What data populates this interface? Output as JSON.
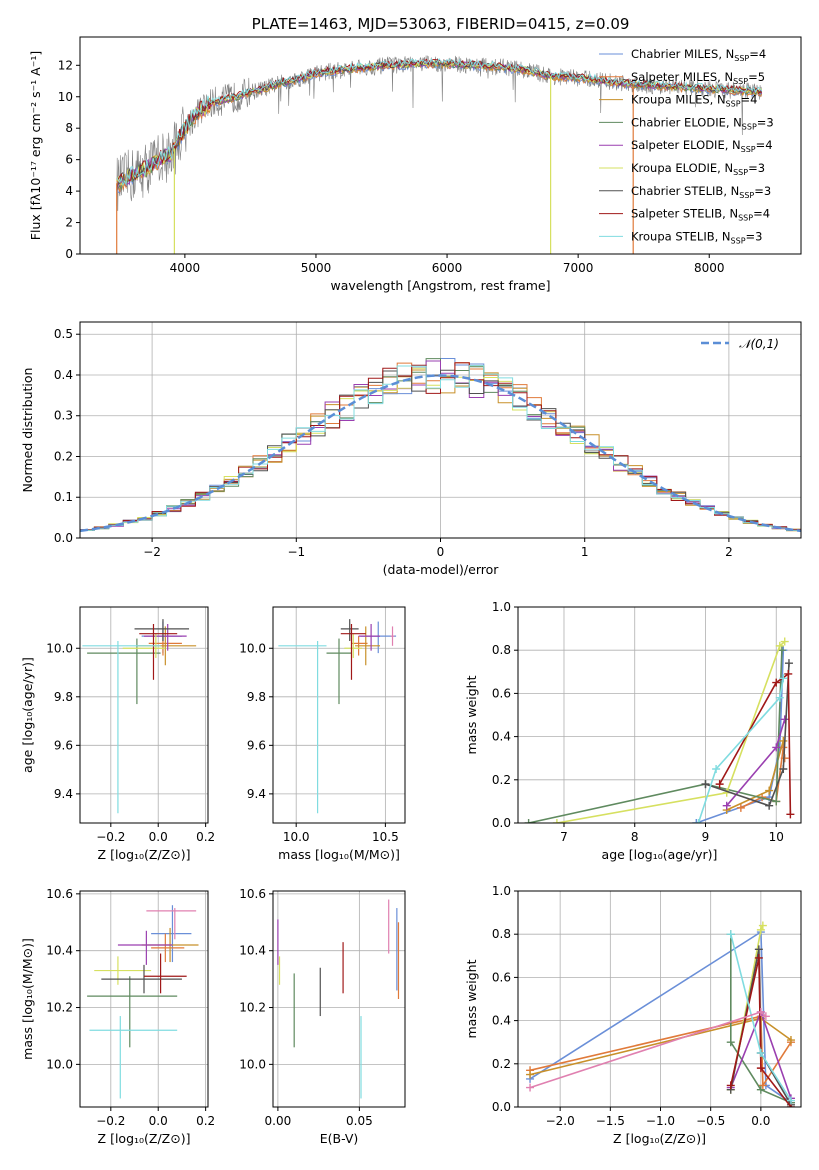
{
  "palette": {
    "Chabrier MILES": "#6a8fd8",
    "Salpeter MILES": "#e07a3a",
    "Kroupa MILES": "#c8902a",
    "Chabrier ELODIE": "#5f8a5f",
    "Salpeter ELODIE": "#9a3fb0",
    "Kroupa ELODIE": "#d6e060",
    "Chabrier STELIB": "#505050",
    "Salpeter STELIB": "#a01818",
    "Kroupa STELIB": "#80dce0",
    "observed": "#7f7f7f",
    "normal": "#5b8ed6",
    "pink": "#e080b0"
  },
  "chart_data": [
    {
      "id": "spectrum",
      "type": "line",
      "title": "PLATE=1463, MJD=53063, FIBERID=0415, z=0.09",
      "xlabel": "wavelength [Angstrom, rest frame]",
      "ylabel": "Flux [fλ10⁻¹⁷ erg cm⁻² s⁻¹ A⁻¹]",
      "xlim": [
        3200,
        8700
      ],
      "ylim": [
        0,
        13.8
      ],
      "xticks": [
        4000,
        5000,
        6000,
        7000,
        8000
      ],
      "yticks": [
        0,
        2,
        4,
        6,
        8,
        10,
        12
      ],
      "grid": false,
      "legend_position": "upper-right",
      "legend": [
        {
          "name": "Chabrier MILES",
          "suffix": "SSP",
          "n": "=4"
        },
        {
          "name": "Salpeter MILES",
          "suffix": "SSP",
          "n": "=5"
        },
        {
          "name": "Kroupa MILES",
          "suffix": "SSP",
          "n": "=4"
        },
        {
          "name": "Chabrier ELODIE",
          "suffix": "SSP",
          "n": "=3"
        },
        {
          "name": "Salpeter ELODIE",
          "suffix": "SSP",
          "n": "=4"
        },
        {
          "name": "Kroupa ELODIE",
          "suffix": "SSP",
          "n": "=3"
        },
        {
          "name": "Chabrier STELIB",
          "suffix": "SSP",
          "n": "=3"
        },
        {
          "name": "Salpeter STELIB",
          "suffix": "SSP",
          "n": "=4"
        },
        {
          "name": "Kroupa STELIB",
          "suffix": "SSP",
          "n": "=3"
        }
      ],
      "continuum_x": [
        3500,
        3600,
        3700,
        3800,
        3900,
        4000,
        4100,
        4200,
        4300,
        4400,
        4500,
        4600,
        4700,
        4800,
        4900,
        5000,
        5200,
        5400,
        5600,
        5800,
        6000,
        6200,
        6400,
        6600,
        6800,
        7000,
        7200,
        7400,
        7600,
        7800,
        8000,
        8200,
        8400
      ],
      "continuum_y": [
        4.5,
        5.0,
        5.4,
        6.0,
        6.4,
        8.0,
        9.0,
        9.6,
        9.8,
        10.0,
        10.3,
        10.5,
        10.8,
        11.0,
        11.2,
        11.5,
        11.7,
        11.9,
        12.0,
        12.1,
        12.1,
        12.0,
        11.9,
        11.7,
        11.3,
        11.2,
        11.0,
        10.8,
        10.7,
        10.6,
        10.5,
        10.4,
        10.3
      ],
      "model_drops": [
        {
          "x": 3480,
          "series": "Salpeter MILES"
        },
        {
          "x": 3920,
          "series": "Kroupa ELODIE"
        },
        {
          "x": 6790,
          "series": "Kroupa ELODIE"
        },
        {
          "x": 7420,
          "series": "Salpeter MILES"
        }
      ]
    },
    {
      "id": "residuals",
      "type": "histogram",
      "xlabel": "(data-model)/error",
      "ylabel": "Normed distribution",
      "xlim": [
        -2.5,
        2.5
      ],
      "ylim": [
        0,
        0.53
      ],
      "xticks": [
        -2,
        -1,
        0,
        1,
        2
      ],
      "yticks": [
        0.0,
        0.1,
        0.2,
        0.3,
        0.4,
        0.5
      ],
      "grid": true,
      "legend_position": "upper-right",
      "reference_curve": {
        "name": "𝒩(0,1)",
        "mean": 0,
        "sigma": 1
      },
      "bin_width": 0.1
    },
    {
      "id": "age-vs-Z",
      "type": "errorbar",
      "xlabel": "Z [log₁₀(Z/Z⊙)]",
      "ylabel": "age  [log₁₀(age/yr)]",
      "xlim": [
        -0.33,
        0.21
      ],
      "ylim": [
        9.28,
        10.17
      ],
      "xticks": [
        -0.2,
        0.0,
        0.2
      ],
      "yticks": [
        9.4,
        9.6,
        9.8,
        10.0
      ],
      "grid": true,
      "points": [
        {
          "series": "Chabrier MILES",
          "x": 0.02,
          "xerr": [
            0.09,
            0.08
          ],
          "y": 10.05,
          "yerr": [
            0.07,
            0.06
          ]
        },
        {
          "series": "Salpeter MILES",
          "x": 0.02,
          "xerr": [
            0.06,
            0.08
          ],
          "y": 10.02,
          "yerr": [
            0.05,
            0.03
          ]
        },
        {
          "series": "Kroupa MILES",
          "x": 0.03,
          "xerr": [
            0.12,
            0.13
          ],
          "y": 10.01,
          "yerr": [
            0.08,
            0.08
          ]
        },
        {
          "series": "Chabrier ELODIE",
          "x": -0.09,
          "xerr": [
            0.21,
            0.1
          ],
          "y": 9.98,
          "yerr": [
            0.21,
            0.06
          ]
        },
        {
          "series": "Salpeter ELODIE",
          "x": 0.04,
          "xerr": [
            0.1,
            0.08
          ],
          "y": 10.05,
          "yerr": [
            0.06,
            0.05
          ]
        },
        {
          "series": "Kroupa ELODIE",
          "x": -0.01,
          "xerr": [
            0.14,
            0.04
          ],
          "y": 10.0,
          "yerr": [
            0.04,
            0.06
          ]
        },
        {
          "series": "Chabrier STELIB",
          "x": 0.02,
          "xerr": [
            0.12,
            0.11
          ],
          "y": 10.08,
          "yerr": [
            0.05,
            0.04
          ]
        },
        {
          "series": "Salpeter STELIB",
          "x": -0.02,
          "xerr": [
            0.06,
            0.1
          ],
          "y": 10.06,
          "yerr": [
            0.19,
            0.04
          ]
        },
        {
          "series": "Kroupa STELIB",
          "x": -0.17,
          "xerr": [
            0.15,
            0.18
          ],
          "y": 10.01,
          "yerr": [
            0.69,
            0.02
          ]
        }
      ]
    },
    {
      "id": "age-vs-mass",
      "type": "errorbar",
      "xlabel": "mass [log₁₀(M/M⊙)]",
      "ylabel": "",
      "xlim": [
        9.87,
        10.61
      ],
      "ylim": [
        9.28,
        10.17
      ],
      "xticks": [
        10.0,
        10.5
      ],
      "yticks": [
        9.4,
        9.6,
        9.8,
        10.0
      ],
      "grid": true,
      "points": [
        {
          "series": "Chabrier MILES",
          "x": 10.46,
          "xerr": [
            0.1,
            0.1
          ],
          "y": 10.05,
          "yerr": [
            0.07,
            0.06
          ]
        },
        {
          "series": "Salpeter MILES",
          "x": 10.35,
          "xerr": [
            0.04,
            0.05
          ],
          "y": 10.02,
          "yerr": [
            0.05,
            0.03
          ]
        },
        {
          "series": "Kroupa MILES",
          "x": 10.39,
          "xerr": [
            0.06,
            0.08
          ],
          "y": 10.01,
          "yerr": [
            0.08,
            0.08
          ]
        },
        {
          "series": "Chabrier ELODIE",
          "x": 10.24,
          "xerr": [
            0.07,
            0.07
          ],
          "y": 9.98,
          "yerr": [
            0.21,
            0.06
          ]
        },
        {
          "series": "Salpeter ELODIE",
          "x": 10.42,
          "xerr": [
            0.07,
            0.05
          ],
          "y": 10.05,
          "yerr": [
            0.06,
            0.05
          ]
        },
        {
          "series": "Kroupa ELODIE",
          "x": 10.32,
          "xerr": [
            0.05,
            0.05
          ],
          "y": 10.0,
          "yerr": [
            0.04,
            0.06
          ]
        },
        {
          "series": "Chabrier STELIB",
          "x": 10.3,
          "xerr": [
            0.05,
            0.05
          ],
          "y": 10.08,
          "yerr": [
            0.05,
            0.04
          ]
        },
        {
          "series": "Salpeter STELIB",
          "x": 10.31,
          "xerr": [
            0.06,
            0.08
          ],
          "y": 10.06,
          "yerr": [
            0.19,
            0.04
          ]
        },
        {
          "series": "Kroupa STELIB",
          "x": 10.12,
          "xerr": [
            0.22,
            0.05
          ],
          "y": 10.01,
          "yerr": [
            0.69,
            0.02
          ]
        },
        {
          "series": "pink",
          "x": 10.54,
          "xerr": [
            0.01,
            0.01
          ],
          "y": 10.05,
          "yerr": [
            0.04,
            0.04
          ]
        }
      ]
    },
    {
      "id": "massweight-vs-age",
      "type": "line",
      "xlabel": "age  [log₁₀(age/yr)]",
      "ylabel": "mass weight",
      "xlim": [
        6.35,
        10.35
      ],
      "ylim": [
        0,
        1.0
      ],
      "xticks": [
        7,
        8,
        9,
        10
      ],
      "yticks": [
        0.0,
        0.2,
        0.4,
        0.6,
        0.8,
        1.0
      ],
      "grid": true,
      "series": [
        {
          "name": "Chabrier MILES",
          "x": [
            8.87,
            9.9,
            10.05,
            10.1
          ],
          "y": [
            0.0,
            0.12,
            0.35,
            0.8
          ]
        },
        {
          "name": "Salpeter MILES",
          "x": [
            9.5,
            9.8,
            10.0,
            10.1,
            10.12
          ],
          "y": [
            0.07,
            0.12,
            0.1,
            0.35,
            0.3
          ]
        },
        {
          "name": "Kroupa MILES",
          "x": [
            9.3,
            9.9,
            10.1
          ],
          "y": [
            0.06,
            0.15,
            0.38
          ]
        },
        {
          "name": "Chabrier ELODIE",
          "x": [
            6.5,
            9.0,
            10.0,
            10.08
          ],
          "y": [
            0.0,
            0.18,
            0.1,
            0.8
          ]
        },
        {
          "name": "Salpeter ELODIE",
          "x": [
            9.3,
            10.0,
            10.12
          ],
          "y": [
            0.08,
            0.35,
            0.48
          ]
        },
        {
          "name": "Kroupa ELODIE",
          "x": [
            6.9,
            9.3,
            10.05,
            10.12
          ],
          "y": [
            0.0,
            0.14,
            0.82,
            0.84
          ]
        },
        {
          "name": "Chabrier STELIB",
          "x": [
            9.0,
            9.9,
            10.1,
            10.18
          ],
          "y": [
            0.18,
            0.08,
            0.25,
            0.74
          ]
        },
        {
          "name": "Salpeter STELIB",
          "x": [
            9.2,
            10.0,
            10.17,
            10.2
          ],
          "y": [
            0.18,
            0.65,
            0.69,
            0.04
          ]
        },
        {
          "name": "Kroupa STELIB",
          "x": [
            8.9,
            9.15,
            10.05,
            10.1
          ],
          "y": [
            0.0,
            0.25,
            0.58,
            0.67
          ]
        }
      ]
    },
    {
      "id": "mass-vs-Z",
      "type": "errorbar",
      "xlabel": "Z [log₁₀(Z/Z⊙)]",
      "ylabel": "mass [log₁₀(M/M⊙)]",
      "xlim": [
        -0.33,
        0.21
      ],
      "ylim": [
        9.85,
        10.61
      ],
      "xticks": [
        -0.2,
        0.0,
        0.2
      ],
      "yticks": [
        10.0,
        10.2,
        10.4,
        10.6
      ],
      "grid": true,
      "points": [
        {
          "series": "Chabrier MILES",
          "x": 0.06,
          "xerr": [
            0.09,
            0.08
          ],
          "y": 10.46,
          "yerr": [
            0.1,
            0.1
          ]
        },
        {
          "series": "Salpeter MILES",
          "x": 0.03,
          "xerr": [
            0.06,
            0.08
          ],
          "y": 10.41,
          "yerr": [
            0.05,
            0.05
          ]
        },
        {
          "series": "Kroupa MILES",
          "x": 0.05,
          "xerr": [
            0.12,
            0.12
          ],
          "y": 10.42,
          "yerr": [
            0.06,
            0.06
          ]
        },
        {
          "series": "Chabrier ELODIE",
          "x": -0.12,
          "xerr": [
            0.18,
            0.2
          ],
          "y": 10.24,
          "yerr": [
            0.18,
            0.07
          ]
        },
        {
          "series": "Salpeter ELODIE",
          "x": -0.05,
          "xerr": [
            0.12,
            0.11
          ],
          "y": 10.42,
          "yerr": [
            0.07,
            0.05
          ]
        },
        {
          "series": "Kroupa ELODIE",
          "x": -0.17,
          "xerr": [
            0.1,
            0.14
          ],
          "y": 10.33,
          "yerr": [
            0.05,
            0.05
          ]
        },
        {
          "series": "Chabrier STELIB",
          "x": -0.06,
          "xerr": [
            0.18,
            0.16
          ],
          "y": 10.3,
          "yerr": [
            0.05,
            0.05
          ]
        },
        {
          "series": "Salpeter STELIB",
          "x": 0.01,
          "xerr": [
            0.07,
            0.11
          ],
          "y": 10.31,
          "yerr": [
            0.06,
            0.08
          ]
        },
        {
          "series": "Kroupa STELIB",
          "x": -0.16,
          "xerr": [
            0.13,
            0.24
          ],
          "y": 10.12,
          "yerr": [
            0.24,
            0.05
          ]
        },
        {
          "series": "pink",
          "x": 0.07,
          "xerr": [
            0.12,
            0.09
          ],
          "y": 10.54,
          "yerr": [
            0.1,
            0.01
          ]
        }
      ]
    },
    {
      "id": "mass-vs-EBV",
      "type": "errorbar",
      "xlabel": "E(B-V)",
      "ylabel": "",
      "xlim": [
        -0.003,
        0.078
      ],
      "ylim": [
        9.85,
        10.61
      ],
      "xticks": [
        0.0,
        0.05
      ],
      "xticklabels": [
        "0.00",
        "0.05"
      ],
      "yticks": [
        10.0,
        10.2,
        10.4,
        10.6
      ],
      "grid": true,
      "points": [
        {
          "series": "Salpeter ELODIE",
          "x": 0.0,
          "y": 10.42,
          "yerr": [
            0.07,
            0.09
          ]
        },
        {
          "series": "Kroupa ELODIE",
          "x": 0.001,
          "y": 10.33,
          "yerr": [
            0.05,
            0.05
          ]
        },
        {
          "series": "Chabrier ELODIE",
          "x": 0.01,
          "y": 10.19,
          "yerr": [
            0.13,
            0.13
          ]
        },
        {
          "series": "Chabrier STELIB",
          "x": 0.026,
          "y": 10.26,
          "yerr": [
            0.09,
            0.08
          ]
        },
        {
          "series": "Salpeter STELIB",
          "x": 0.04,
          "y": 10.34,
          "yerr": [
            0.09,
            0.09
          ]
        },
        {
          "series": "Kroupa STELIB",
          "x": 0.051,
          "y": 10.12,
          "yerr": [
            0.24,
            0.05
          ]
        },
        {
          "series": "pink",
          "x": 0.068,
          "y": 10.49,
          "yerr": [
            0.1,
            0.09
          ]
        },
        {
          "series": "Chabrier MILES",
          "x": 0.073,
          "y": 10.4,
          "yerr": [
            0.14,
            0.15
          ]
        },
        {
          "series": "Salpeter MILES",
          "x": 0.074,
          "y": 10.35,
          "yerr": [
            0.12,
            0.15
          ]
        }
      ]
    },
    {
      "id": "massweight-vs-Z",
      "type": "line",
      "xlabel": "Z [log₁₀(Z/Z⊙)]",
      "ylabel": "mass weight",
      "xlim": [
        -2.42,
        0.4
      ],
      "ylim": [
        0,
        1.0
      ],
      "xticks": [
        -2.0,
        -1.5,
        -1.0,
        -0.5,
        0.0
      ],
      "yticks": [
        0.0,
        0.2,
        0.4,
        0.6,
        0.8,
        1.0
      ],
      "grid": true,
      "series": [
        {
          "name": "Chabrier MILES",
          "x": [
            -2.3,
            0.0,
            0.05,
            0.3
          ],
          "y": [
            0.13,
            0.81,
            0.1,
            0.02
          ]
        },
        {
          "name": "Salpeter MILES",
          "x": [
            -2.3,
            -0.0,
            0.02,
            0.3
          ],
          "y": [
            0.17,
            0.42,
            0.1,
            0.3
          ]
        },
        {
          "name": "Kroupa MILES",
          "x": [
            -2.3,
            0.0,
            0.3
          ],
          "y": [
            0.15,
            0.41,
            0.31
          ]
        },
        {
          "name": "Chabrier ELODIE",
          "x": [
            -0.3,
            -0.3,
            0.0,
            0.3
          ],
          "y": [
            0.8,
            0.3,
            0.08,
            0.02
          ]
        },
        {
          "name": "Salpeter ELODIE",
          "x": [
            -0.3,
            0.0,
            0.3
          ],
          "y": [
            0.09,
            0.44,
            0.04
          ]
        },
        {
          "name": "Kroupa ELODIE",
          "x": [
            -0.3,
            -0.0,
            0.02
          ],
          "y": [
            0.08,
            0.82,
            0.84
          ]
        },
        {
          "name": "Chabrier STELIB",
          "x": [
            -0.3,
            -0.02,
            0.0,
            0.3
          ],
          "y": [
            0.08,
            0.73,
            0.25,
            0.01
          ]
        },
        {
          "name": "Salpeter STELIB",
          "x": [
            -0.3,
            -0.02,
            0.0,
            0.3
          ],
          "y": [
            0.1,
            0.69,
            0.18,
            0.0
          ]
        },
        {
          "name": "Kroupa STELIB",
          "x": [
            -0.3,
            0.0,
            0.3
          ],
          "y": [
            0.8,
            0.25,
            0.03
          ]
        },
        {
          "name": "pink",
          "x": [
            -2.3,
            0.0,
            0.05
          ],
          "y": [
            0.09,
            0.44,
            0.42
          ]
        }
      ]
    }
  ]
}
